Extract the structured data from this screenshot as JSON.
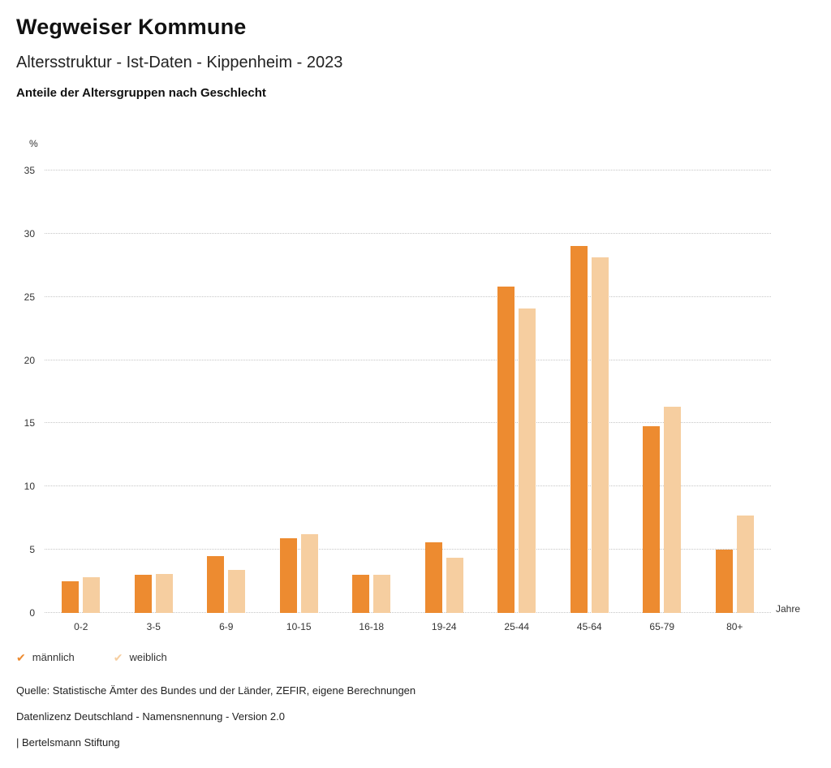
{
  "header": {
    "title": "Wegweiser Kommune",
    "subtitle": "Altersstruktur - Ist-Daten - Kippenheim - 2023",
    "chart_title": "Anteile der Altersgruppen nach Geschlecht"
  },
  "chart_data": {
    "type": "bar",
    "title": "Anteile der Altersgruppen nach Geschlecht",
    "categories": [
      "0-2",
      "3-5",
      "6-9",
      "10-15",
      "16-18",
      "19-24",
      "25-44",
      "45-64",
      "65-79",
      "80+"
    ],
    "series": [
      {
        "name": "männlich",
        "color": "#ED8B30",
        "values": [
          2.5,
          3.0,
          4.5,
          5.9,
          3.0,
          5.6,
          25.8,
          29.0,
          14.8,
          5.0
        ]
      },
      {
        "name": "weiblich",
        "color": "#F6CEA0",
        "values": [
          2.8,
          3.1,
          3.4,
          6.2,
          3.0,
          4.4,
          24.1,
          28.1,
          16.3,
          7.7
        ]
      }
    ],
    "ylabel_unit": "%",
    "xlabel_unit": "Jahre",
    "ylim": [
      0,
      35
    ],
    "yticks": [
      0,
      5,
      10,
      15,
      20,
      25,
      30,
      35
    ],
    "grid": "dotted-horizontal",
    "legend_position": "bottom-left"
  },
  "legend": {
    "items": [
      {
        "label": "männlich",
        "color": "#ED8B30",
        "marker": "check"
      },
      {
        "label": "weiblich",
        "color": "#F6CEA0",
        "marker": "check"
      }
    ]
  },
  "footer": {
    "source": "Quelle: Statistische Ämter des Bundes und der Länder, ZEFIR, eigene Berechnungen",
    "license": "Datenlizenz Deutschland - Namensnennung - Version 2.0",
    "attribution": "| Bertelsmann Stiftung"
  }
}
